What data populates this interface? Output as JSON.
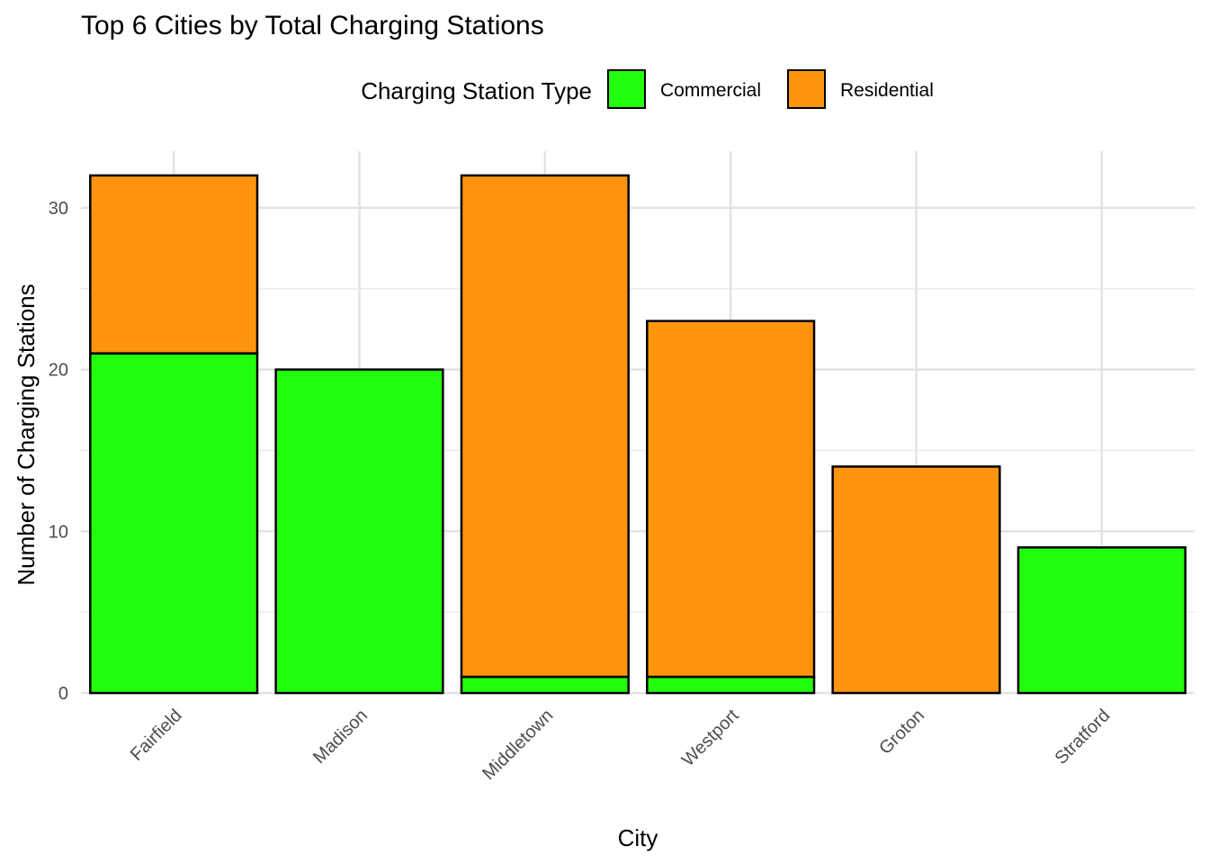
{
  "chart_data": {
    "type": "bar",
    "stacked": true,
    "title": "Top 6 Cities by Total Charging Stations",
    "xlabel": "City",
    "ylabel": "Number of Charging Stations",
    "categories": [
      "Fairfield",
      "Madison",
      "Middletown",
      "Westport",
      "Groton",
      "Stratford"
    ],
    "series": [
      {
        "name": "Commercial",
        "color": "#22ff0e",
        "values": [
          21,
          20,
          1,
          1,
          0,
          9
        ]
      },
      {
        "name": "Residential",
        "color": "#ff950e",
        "values": [
          11,
          0,
          31,
          22,
          14,
          0
        ]
      }
    ],
    "legend": {
      "title": "Charging Station Type",
      "position": "top"
    },
    "ylim": [
      0,
      33
    ],
    "yticks": [
      0,
      10,
      20,
      30
    ],
    "grid": true
  }
}
